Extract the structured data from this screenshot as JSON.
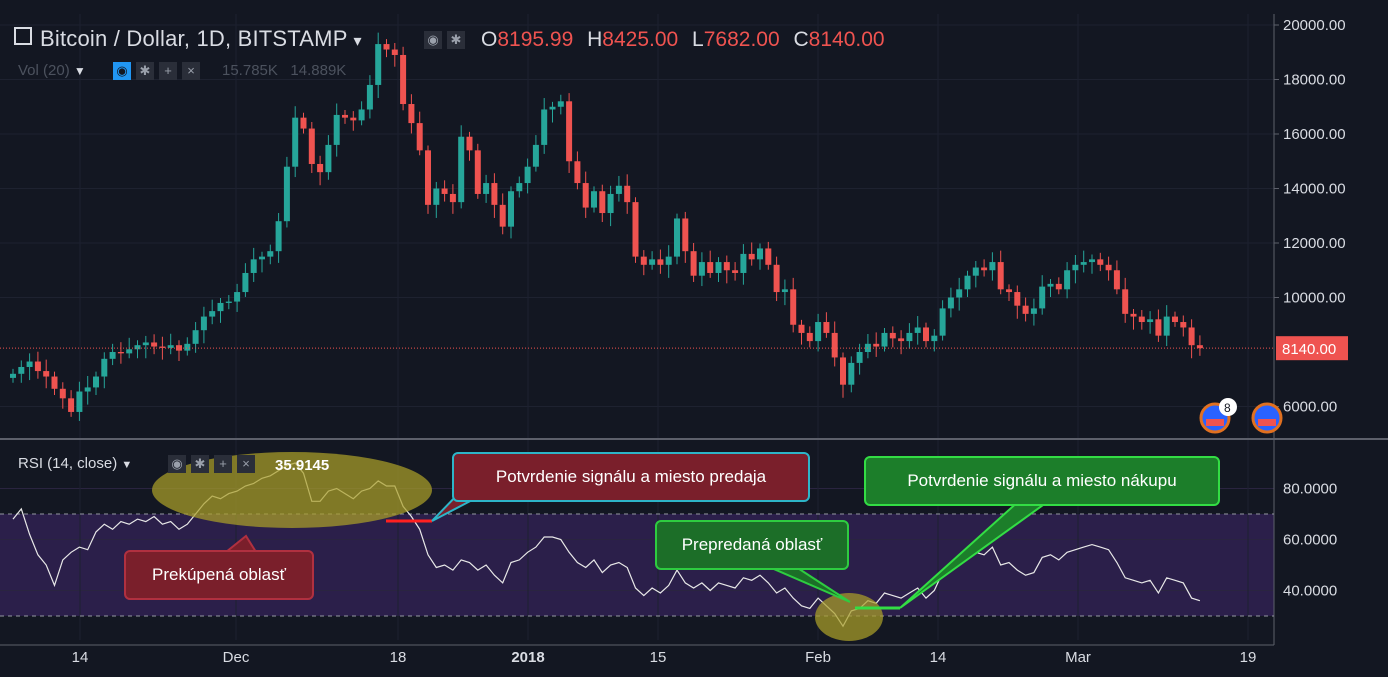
{
  "header": {
    "title": "Bitcoin / Dollar, 1D, BITSTAMP",
    "caret": "▾",
    "o_label": "O",
    "o_value": "8195.99",
    "h_label": "H",
    "h_value": "8425.00",
    "l_label": "L",
    "l_value": "7682.00",
    "c_label": "C",
    "c_value": "8140.00",
    "vol_label": "Vol (20)",
    "vol_value_1": "15.785K",
    "vol_value_2": "14.889K",
    "rsi_label": "RSI (14, close)",
    "rsi_value": "35.9145"
  },
  "colors": {
    "background": "#131722",
    "up": "#26a69a",
    "down": "#ef5350",
    "rsi_band": "#2b1f4a",
    "price_tag": "#ef5350"
  },
  "callouts": {
    "overbought": "Prekúpená oblasť",
    "sell_confirm": "Potvrdenie signálu a miesto predaja",
    "oversold": "Prepredaná oblasť",
    "buy_confirm": "Potvrdenie signálu a miesto nákupu"
  },
  "badge_text": "8",
  "chart_data": [
    {
      "type": "candlestick",
      "title": "Bitcoin / Dollar, 1D, BITSTAMP",
      "x_ticks": [
        "14",
        "Dec",
        "18",
        "2018",
        "15",
        "Feb",
        "14",
        "Mar",
        "19"
      ],
      "y_ticks": [
        "20000.00",
        "18000.00",
        "16000.00",
        "14000.00",
        "12000.00",
        "10000.00",
        "6000.00"
      ],
      "ylim": [
        5000,
        20500
      ],
      "last_price_label": "8140.00",
      "last_price": 8140,
      "closes": [
        7200,
        7450,
        7650,
        7300,
        7100,
        6650,
        6300,
        5800,
        6550,
        6700,
        7100,
        7750,
        8000,
        7950,
        8100,
        8250,
        8350,
        8200,
        8150,
        8250,
        8050,
        8300,
        8800,
        9300,
        9500,
        9800,
        9850,
        10200,
        10900,
        11400,
        11500,
        11700,
        12800,
        14800,
        16600,
        16200,
        14900,
        14600,
        15600,
        16700,
        16600,
        16500,
        16900,
        17800,
        19300,
        19100,
        18900,
        17100,
        16400,
        15400,
        13400,
        14000,
        13800,
        13500,
        15900,
        15400,
        13800,
        14200,
        13400,
        12600,
        13900,
        14200,
        14800,
        15600,
        16900,
        17000,
        17200,
        15000,
        14200,
        13300,
        13900,
        13100,
        13800,
        14100,
        13500,
        11500,
        11200,
        11400,
        11200,
        11500,
        12900,
        11700,
        10800,
        11300,
        10900,
        11300,
        11000,
        10900,
        11600,
        11400,
        11800,
        11200,
        10200,
        10300,
        9000,
        8700,
        8400,
        9100,
        8700,
        7800,
        6800,
        7600,
        8000,
        8300,
        8200,
        8700,
        8500,
        8400,
        8700,
        8900,
        8400,
        8600,
        9600,
        10000,
        10300,
        10800,
        11100,
        11000,
        11300,
        10300,
        10200,
        9700,
        9400,
        9600,
        10400,
        10500,
        10300,
        11000,
        11200,
        11300,
        11400,
        11200,
        11000,
        10300,
        9400,
        9300,
        9100,
        9200,
        8600,
        9300,
        9100,
        8900,
        8250,
        8140
      ],
      "rsi": {
        "type": "line",
        "label": "RSI (14, close)",
        "value_label": "35.9145",
        "y_ticks": [
          "80.0000",
          "60.0000",
          "40.0000"
        ],
        "ylim": [
          20,
          100
        ],
        "bands": [
          70,
          30
        ],
        "values": [
          68,
          72,
          62,
          54,
          50,
          42,
          52,
          55,
          57,
          56,
          63,
          66,
          64,
          67,
          66,
          68,
          67,
          69,
          66,
          67,
          64,
          66,
          70,
          74,
          77,
          76,
          78,
          79,
          81,
          82,
          84,
          85,
          87,
          89,
          90,
          86,
          75,
          75,
          79,
          80,
          78,
          76,
          79,
          80,
          83,
          81,
          81,
          73,
          69,
          64,
          54,
          49,
          50,
          48,
          52,
          51,
          48,
          50,
          46,
          43,
          51,
          52,
          55,
          57,
          61,
          61,
          60,
          55,
          51,
          49,
          52,
          47,
          50,
          51,
          49,
          41,
          38,
          41,
          39,
          42,
          48,
          43,
          41,
          43,
          40,
          43,
          42,
          41,
          45,
          44,
          46,
          43,
          39,
          41,
          37,
          34,
          33,
          37,
          34,
          31,
          26,
          32,
          33,
          36,
          35,
          39,
          38,
          37,
          39,
          41,
          37,
          40,
          47,
          49,
          51,
          53,
          55,
          54,
          57,
          50,
          51,
          48,
          46,
          47,
          53,
          54,
          52,
          55,
          56,
          57,
          58,
          57,
          56,
          51,
          45,
          44,
          43,
          44,
          39,
          45,
          44,
          43,
          37,
          36
        ]
      }
    }
  ]
}
